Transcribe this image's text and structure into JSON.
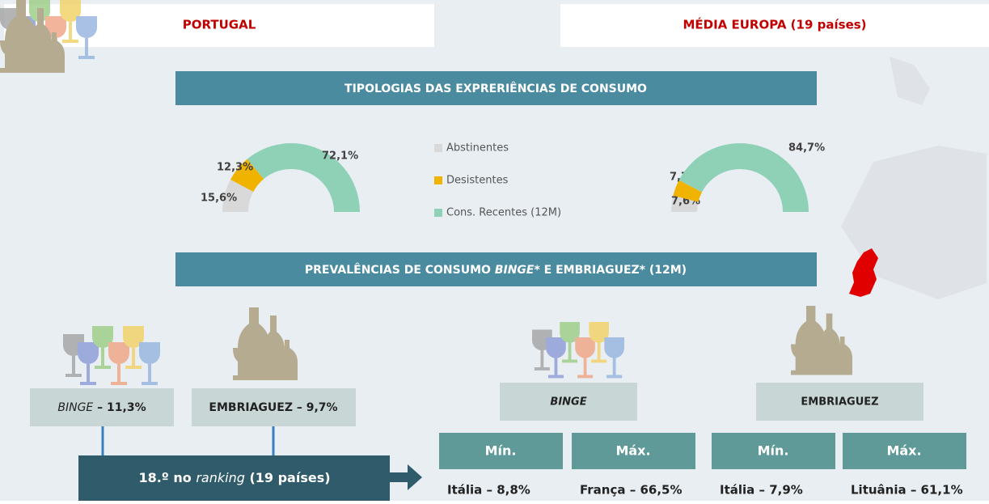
{
  "headers": [
    "PORTUGAL",
    "MÉDIA EUROPA (19 países)"
  ],
  "section1_title": "TIPOLOGIAS DAS EXPRERIÊNCIAS DE CONSUMO",
  "donuts": {
    "type": "pie",
    "categories": [
      "Abstinentes",
      "Desistentes",
      "Cons. Recentes (12M)"
    ],
    "colors": [
      "#d9d9d9",
      "#f0b400",
      "#8fd1b7"
    ],
    "charts": [
      {
        "values": [
          15.6,
          12.3,
          72.1
        ],
        "value_labels": [
          "15,6%",
          "12,3%",
          "72,1%"
        ]
      },
      {
        "values": [
          7.6,
          7.7,
          84.7
        ],
        "value_labels": [
          "7,6%",
          "7,7%",
          "84,7%"
        ]
      }
    ]
  },
  "section2_title": [
    "PREVALÊNCIAS DE CONSUMO ",
    "BINGE*",
    " E EMBRIAGUEZ* (12M)"
  ],
  "portugal": {
    "binge": {
      "label": "BINGE",
      "value": " – 11,3%"
    },
    "embriaguez": {
      "label": "EMBRIAGUEZ",
      "value": " – 9,7%"
    },
    "ranking": [
      "18.º no ",
      "ranking",
      " (19 países)"
    ]
  },
  "europa": [
    {
      "label": "BINGE",
      "min_label": "Mín.",
      "max_label": "Máx.",
      "min": "Itália – 8,8%",
      "max": "França – 66,5%"
    },
    {
      "label": "EMBRIAGUEZ",
      "min_label": "Mín.",
      "max_label": "Máx.",
      "min": "Itália – 7,9%",
      "max": "Lituânia – 61,1%"
    }
  ]
}
